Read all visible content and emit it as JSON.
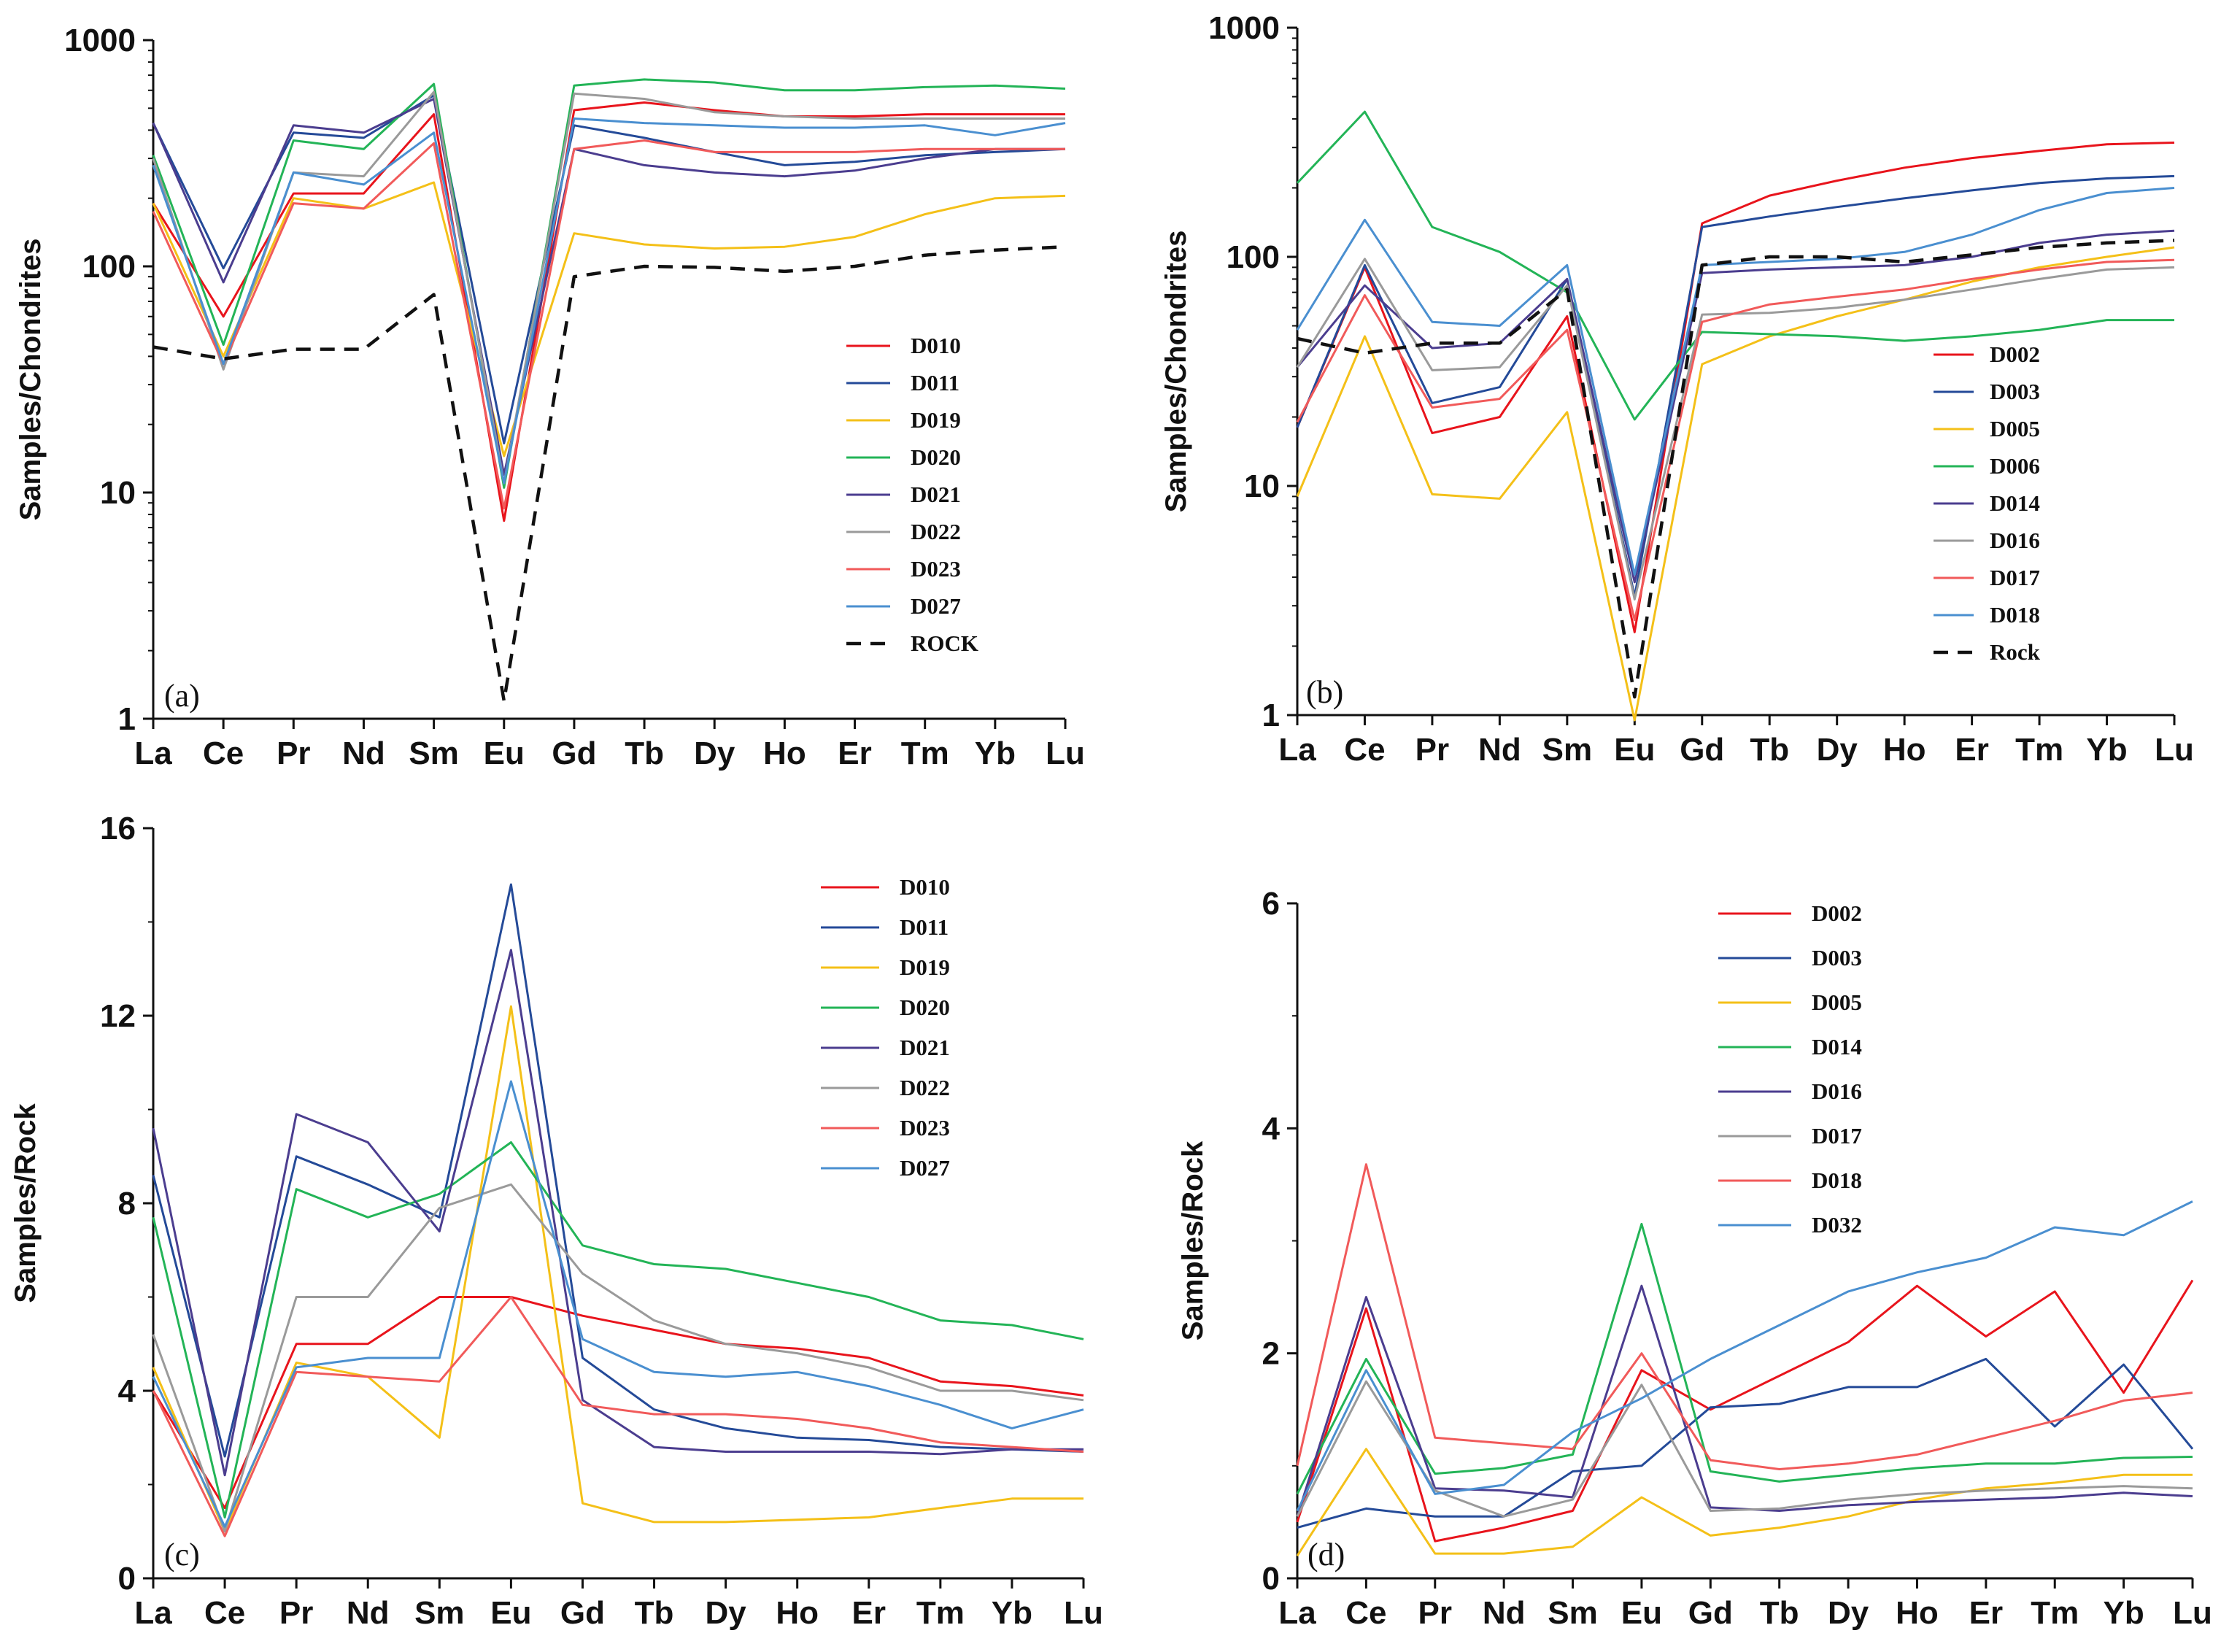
{
  "chart_data": [
    {
      "type": "line",
      "panel_label": "(a)",
      "ylabel": "Samples/Chondrites",
      "yscale": "log",
      "ylim": [
        1,
        1000
      ],
      "yticks": [
        "1",
        "10",
        "100",
        "1000"
      ],
      "categories": [
        "La",
        "Ce",
        "Pr",
        "Nd",
        "Sm",
        "Eu",
        "Gd",
        "Tb",
        "Dy",
        "Ho",
        "Er",
        "Tm",
        "Yb",
        "Lu"
      ],
      "legend_position": "right",
      "series": [
        {
          "name": "D010",
          "color": "#e8141c",
          "values": [
            190,
            60,
            210,
            210,
            470,
            7.5,
            490,
            530,
            490,
            460,
            460,
            470,
            470,
            470
          ]
        },
        {
          "name": "D011",
          "color": "#244a98",
          "values": [
            430,
            98,
            390,
            370,
            570,
            16.5,
            420,
            370,
            320,
            280,
            290,
            310,
            320,
            330
          ]
        },
        {
          "name": "D019",
          "color": "#f4c018",
          "values": [
            190,
            40,
            200,
            180,
            235,
            14.5,
            140,
            125,
            120,
            122,
            135,
            170,
            200,
            205
          ]
        },
        {
          "name": "D020",
          "color": "#23b457",
          "values": [
            310,
            45,
            360,
            330,
            640,
            10.5,
            630,
            670,
            650,
            600,
            600,
            620,
            630,
            610
          ]
        },
        {
          "name": "D021",
          "color": "#4b3d8f",
          "values": [
            430,
            85,
            420,
            390,
            550,
            12,
            330,
            280,
            260,
            250,
            265,
            300,
            330,
            330
          ]
        },
        {
          "name": "D022",
          "color": "#9a9a9a",
          "values": [
            300,
            35,
            260,
            250,
            590,
            11,
            580,
            550,
            480,
            460,
            450,
            450,
            450,
            450
          ]
        },
        {
          "name": "D023",
          "color": "#f15a5a",
          "values": [
            175,
            37,
            190,
            180,
            350,
            8.5,
            330,
            360,
            320,
            320,
            320,
            330,
            330,
            330
          ]
        },
        {
          "name": "D027",
          "color": "#4a8fd0",
          "values": [
            280,
            37,
            260,
            230,
            390,
            11,
            450,
            430,
            420,
            410,
            410,
            420,
            380,
            430
          ]
        },
        {
          "name": "ROCK",
          "color": "#111111",
          "dashed": true,
          "values": [
            44,
            39,
            43,
            43,
            75,
            1.2,
            90,
            100,
            99,
            95,
            100,
            112,
            118,
            122
          ]
        }
      ]
    },
    {
      "type": "line",
      "panel_label": "(b)",
      "ylabel": "Samples/Chondrites",
      "yscale": "log",
      "ylim": [
        1,
        1000
      ],
      "yticks": [
        "1",
        "10",
        "100",
        "1000"
      ],
      "categories": [
        "La",
        "Ce",
        "Pr",
        "Nd",
        "Sm",
        "Eu",
        "Gd",
        "Tb",
        "Dy",
        "Ho",
        "Er",
        "Tm",
        "Yb",
        "Lu"
      ],
      "legend_position": "lower-right",
      "series": [
        {
          "name": "D002",
          "color": "#e8141c",
          "values": [
            18,
            90,
            17,
            20,
            55,
            2.3,
            140,
            185,
            215,
            245,
            270,
            290,
            310,
            315
          ]
        },
        {
          "name": "D003",
          "color": "#244a98",
          "values": [
            18,
            92,
            23,
            27,
            80,
            3.3,
            135,
            150,
            165,
            180,
            195,
            210,
            220,
            225
          ]
        },
        {
          "name": "D005",
          "color": "#f4c018",
          "values": [
            9,
            45,
            9.2,
            8.8,
            21,
            0.95,
            34,
            45,
            55,
            65,
            78,
            90,
            100,
            110
          ]
        },
        {
          "name": "D006",
          "color": "#23b457",
          "values": [
            210,
            430,
            135,
            105,
            70,
            19.5,
            47,
            46,
            45,
            43,
            45,
            48,
            53,
            53
          ]
        },
        {
          "name": "D014",
          "color": "#4b3d8f",
          "values": [
            33,
            75,
            40,
            42,
            80,
            3.8,
            85,
            88,
            90,
            92,
            100,
            115,
            125,
            130
          ]
        },
        {
          "name": "D016",
          "color": "#9a9a9a",
          "values": [
            33,
            98,
            32,
            33,
            75,
            3.2,
            56,
            57,
            60,
            65,
            72,
            80,
            88,
            90
          ]
        },
        {
          "name": "D017",
          "color": "#f15a5a",
          "values": [
            19,
            68,
            22,
            24,
            48,
            2.6,
            52,
            62,
            67,
            72,
            80,
            88,
            95,
            97
          ]
        },
        {
          "name": "D018",
          "color": "#4a8fd0",
          "values": [
            48,
            145,
            52,
            50,
            92,
            4.1,
            92,
            95,
            98,
            105,
            125,
            160,
            190,
            200
          ]
        },
        {
          "name": "Rock",
          "color": "#111111",
          "dashed": true,
          "values": [
            44,
            38,
            42,
            42,
            72,
            1.2,
            92,
            100,
            100,
            95,
            102,
            110,
            115,
            118
          ]
        }
      ]
    },
    {
      "type": "line",
      "panel_label": "(c)",
      "ylabel": "Samples/Rock",
      "yscale": "linear",
      "ylim": [
        0,
        16
      ],
      "yticks": [
        "0",
        "4",
        "8",
        "12",
        "16"
      ],
      "categories": [
        "La",
        "Ce",
        "Pr",
        "Nd",
        "Sm",
        "Eu",
        "Gd",
        "Tb",
        "Dy",
        "Ho",
        "Er",
        "Tm",
        "Yb",
        "Lu"
      ],
      "legend_position": "top-right",
      "series": [
        {
          "name": "D010",
          "color": "#e8141c",
          "values": [
            4.0,
            1.5,
            5.0,
            5.0,
            6.0,
            6.0,
            5.6,
            5.3,
            5.0,
            4.9,
            4.7,
            4.2,
            4.1,
            3.9
          ]
        },
        {
          "name": "D011",
          "color": "#244a98",
          "values": [
            8.6,
            2.6,
            9.0,
            8.4,
            7.7,
            14.8,
            4.7,
            3.6,
            3.2,
            3.0,
            2.95,
            2.8,
            2.75,
            2.7
          ]
        },
        {
          "name": "D019",
          "color": "#f4c018",
          "values": [
            4.5,
            1.0,
            4.6,
            4.3,
            3.0,
            12.2,
            1.6,
            1.2,
            1.2,
            1.25,
            1.3,
            1.5,
            1.7,
            1.7
          ]
        },
        {
          "name": "D020",
          "color": "#23b457",
          "values": [
            7.7,
            1.3,
            8.3,
            7.7,
            8.2,
            9.3,
            7.1,
            6.7,
            6.6,
            6.3,
            6.0,
            5.5,
            5.4,
            5.1
          ]
        },
        {
          "name": "D021",
          "color": "#4b3d8f",
          "values": [
            9.6,
            2.2,
            9.9,
            9.3,
            7.4,
            13.4,
            3.8,
            2.8,
            2.7,
            2.7,
            2.7,
            2.65,
            2.75,
            2.75
          ]
        },
        {
          "name": "D022",
          "color": "#9a9a9a",
          "values": [
            5.2,
            1.0,
            6.0,
            6.0,
            7.9,
            8.4,
            6.5,
            5.5,
            5.0,
            4.8,
            4.5,
            4.0,
            4.0,
            3.8
          ]
        },
        {
          "name": "D023",
          "color": "#f15a5a",
          "values": [
            4.0,
            0.9,
            4.4,
            4.3,
            4.2,
            6.0,
            3.7,
            3.5,
            3.5,
            3.4,
            3.2,
            2.9,
            2.8,
            2.7
          ]
        },
        {
          "name": "D027",
          "color": "#4a8fd0",
          "values": [
            4.3,
            1.1,
            4.5,
            4.7,
            4.7,
            10.6,
            5.1,
            4.4,
            4.3,
            4.4,
            4.1,
            3.7,
            3.2,
            3.6
          ]
        }
      ]
    },
    {
      "type": "line",
      "panel_label": "(d)",
      "ylabel": "Samples/Rock",
      "yscale": "linear",
      "ylim": [
        0,
        6
      ],
      "yticks": [
        "0",
        "2",
        "4",
        "6"
      ],
      "categories": [
        "La",
        "Ce",
        "Pr",
        "Nd",
        "Sm",
        "Eu",
        "Gd",
        "Tb",
        "Dy",
        "Ho",
        "Er",
        "Tm",
        "Yb",
        "Lu"
      ],
      "legend_position": "top-left",
      "series": [
        {
          "name": "D002",
          "color": "#e8141c",
          "values": [
            0.5,
            2.4,
            0.33,
            0.45,
            0.6,
            1.85,
            1.5,
            1.8,
            2.1,
            2.6,
            2.15,
            2.55,
            1.65,
            2.65
          ]
        },
        {
          "name": "D003",
          "color": "#244a98",
          "values": [
            0.45,
            0.62,
            0.55,
            0.55,
            0.95,
            1.0,
            1.52,
            1.55,
            1.7,
            1.7,
            1.95,
            1.35,
            1.9,
            1.15
          ]
        },
        {
          "name": "D005",
          "color": "#f4c018",
          "values": [
            0.2,
            1.15,
            0.22,
            0.22,
            0.28,
            0.72,
            0.38,
            0.45,
            0.55,
            0.7,
            0.8,
            0.85,
            0.92,
            0.92
          ]
        },
        {
          "name": "D014",
          "color": "#23b457",
          "values": [
            0.75,
            1.95,
            0.93,
            0.98,
            1.1,
            3.15,
            0.95,
            0.86,
            0.92,
            0.98,
            1.02,
            1.02,
            1.07,
            1.08
          ]
        },
        {
          "name": "D016",
          "color": "#4b3d8f",
          "values": [
            0.55,
            2.5,
            0.8,
            0.78,
            0.72,
            2.6,
            0.63,
            0.6,
            0.65,
            0.68,
            0.7,
            0.72,
            0.76,
            0.73
          ]
        },
        {
          "name": "D017",
          "color": "#9a9a9a",
          "values": [
            0.55,
            1.75,
            0.78,
            0.55,
            0.7,
            1.72,
            0.6,
            0.62,
            0.7,
            0.75,
            0.78,
            0.8,
            0.82,
            0.8
          ]
        },
        {
          "name": "D018",
          "color": "#f15a5a",
          "values": [
            1.0,
            3.68,
            1.25,
            1.2,
            1.15,
            2.0,
            1.05,
            0.97,
            1.02,
            1.1,
            1.25,
            1.4,
            1.58,
            1.65
          ]
        },
        {
          "name": "D032",
          "color": "#4a8fd0",
          "values": [
            0.6,
            1.85,
            0.75,
            0.83,
            1.3,
            1.6,
            1.95,
            2.25,
            2.55,
            2.72,
            2.85,
            3.12,
            3.05,
            3.35
          ]
        }
      ]
    }
  ]
}
